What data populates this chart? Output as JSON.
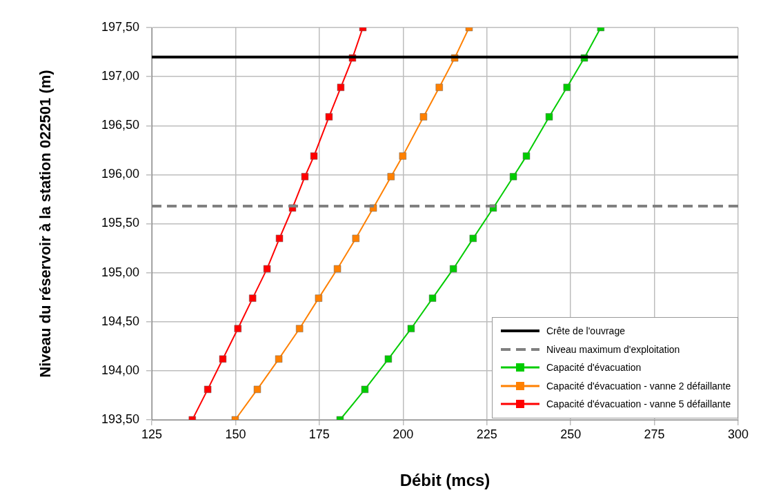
{
  "chart_data": {
    "type": "line",
    "xlabel": "Débit (mcs)",
    "ylabel": "Niveau du réservoir à la station 022501 (m)",
    "xlim": [
      125,
      300
    ],
    "xticks": [
      125,
      150,
      175,
      200,
      225,
      250,
      275,
      300
    ],
    "ylim": [
      193.5,
      197.5
    ],
    "yticks": [
      {
        "value": 193.5,
        "label": "193,50"
      },
      {
        "value": 194,
        "label": "194,00"
      },
      {
        "value": 194.5,
        "label": "194,50"
      },
      {
        "value": 195,
        "label": "195,00"
      },
      {
        "value": 195.5,
        "label": "195,50"
      },
      {
        "value": 196,
        "label": "196,00"
      },
      {
        "value": 196.5,
        "label": "196,50"
      },
      {
        "value": 197,
        "label": "197,00"
      },
      {
        "value": 197.5,
        "label": "197,50"
      }
    ],
    "grid": true,
    "legend": "bottom right",
    "marker": "square",
    "ref_lines": [
      {
        "axis": "y",
        "value": 197.2,
        "label": "Crête de l'ouvrage",
        "color": "#000000",
        "line_style": "solid"
      },
      {
        "axis": "y",
        "value": 195.68,
        "label": "Niveau maximum d'exploitation",
        "color": "#808080",
        "line_style": "dashed"
      }
    ],
    "series": [
      {
        "name": "Capacité d'évacuation",
        "color": "#00cc00",
        "x": [
          181.2,
          188.6,
          195.6,
          202.4,
          208.8,
          215.0,
          220.9,
          226.9,
          232.9,
          236.8,
          243.6,
          248.9,
          254.1,
          259.0
        ],
        "values": [
          193.5,
          193.81,
          194.12,
          194.43,
          194.74,
          195.04,
          195.35,
          195.66,
          195.98,
          196.19,
          196.59,
          196.89,
          197.19,
          197.5
        ]
      },
      {
        "name": "Capacité d'évacuation - vanne 2 défaillante",
        "color": "#ff8000",
        "x": [
          149.9,
          156.5,
          162.9,
          169.1,
          174.8,
          180.4,
          185.9,
          191.1,
          196.4,
          199.9,
          206.1,
          210.8,
          215.4,
          219.7
        ],
        "values": [
          193.5,
          193.81,
          194.12,
          194.43,
          194.74,
          195.04,
          195.35,
          195.66,
          195.98,
          196.19,
          196.59,
          196.89,
          197.19,
          197.5
        ]
      },
      {
        "name": "Capacité d'évacuation - vanne 5 défaillante",
        "color": "#ff0000",
        "x": [
          137.1,
          141.7,
          146.2,
          150.7,
          155.1,
          159.4,
          163.1,
          167.0,
          170.7,
          173.4,
          177.9,
          181.4,
          184.9,
          188.0
        ],
        "values": [
          193.5,
          193.81,
          194.12,
          194.43,
          194.74,
          195.04,
          195.35,
          195.66,
          195.98,
          196.19,
          196.59,
          196.89,
          197.19,
          197.5
        ]
      }
    ]
  }
}
